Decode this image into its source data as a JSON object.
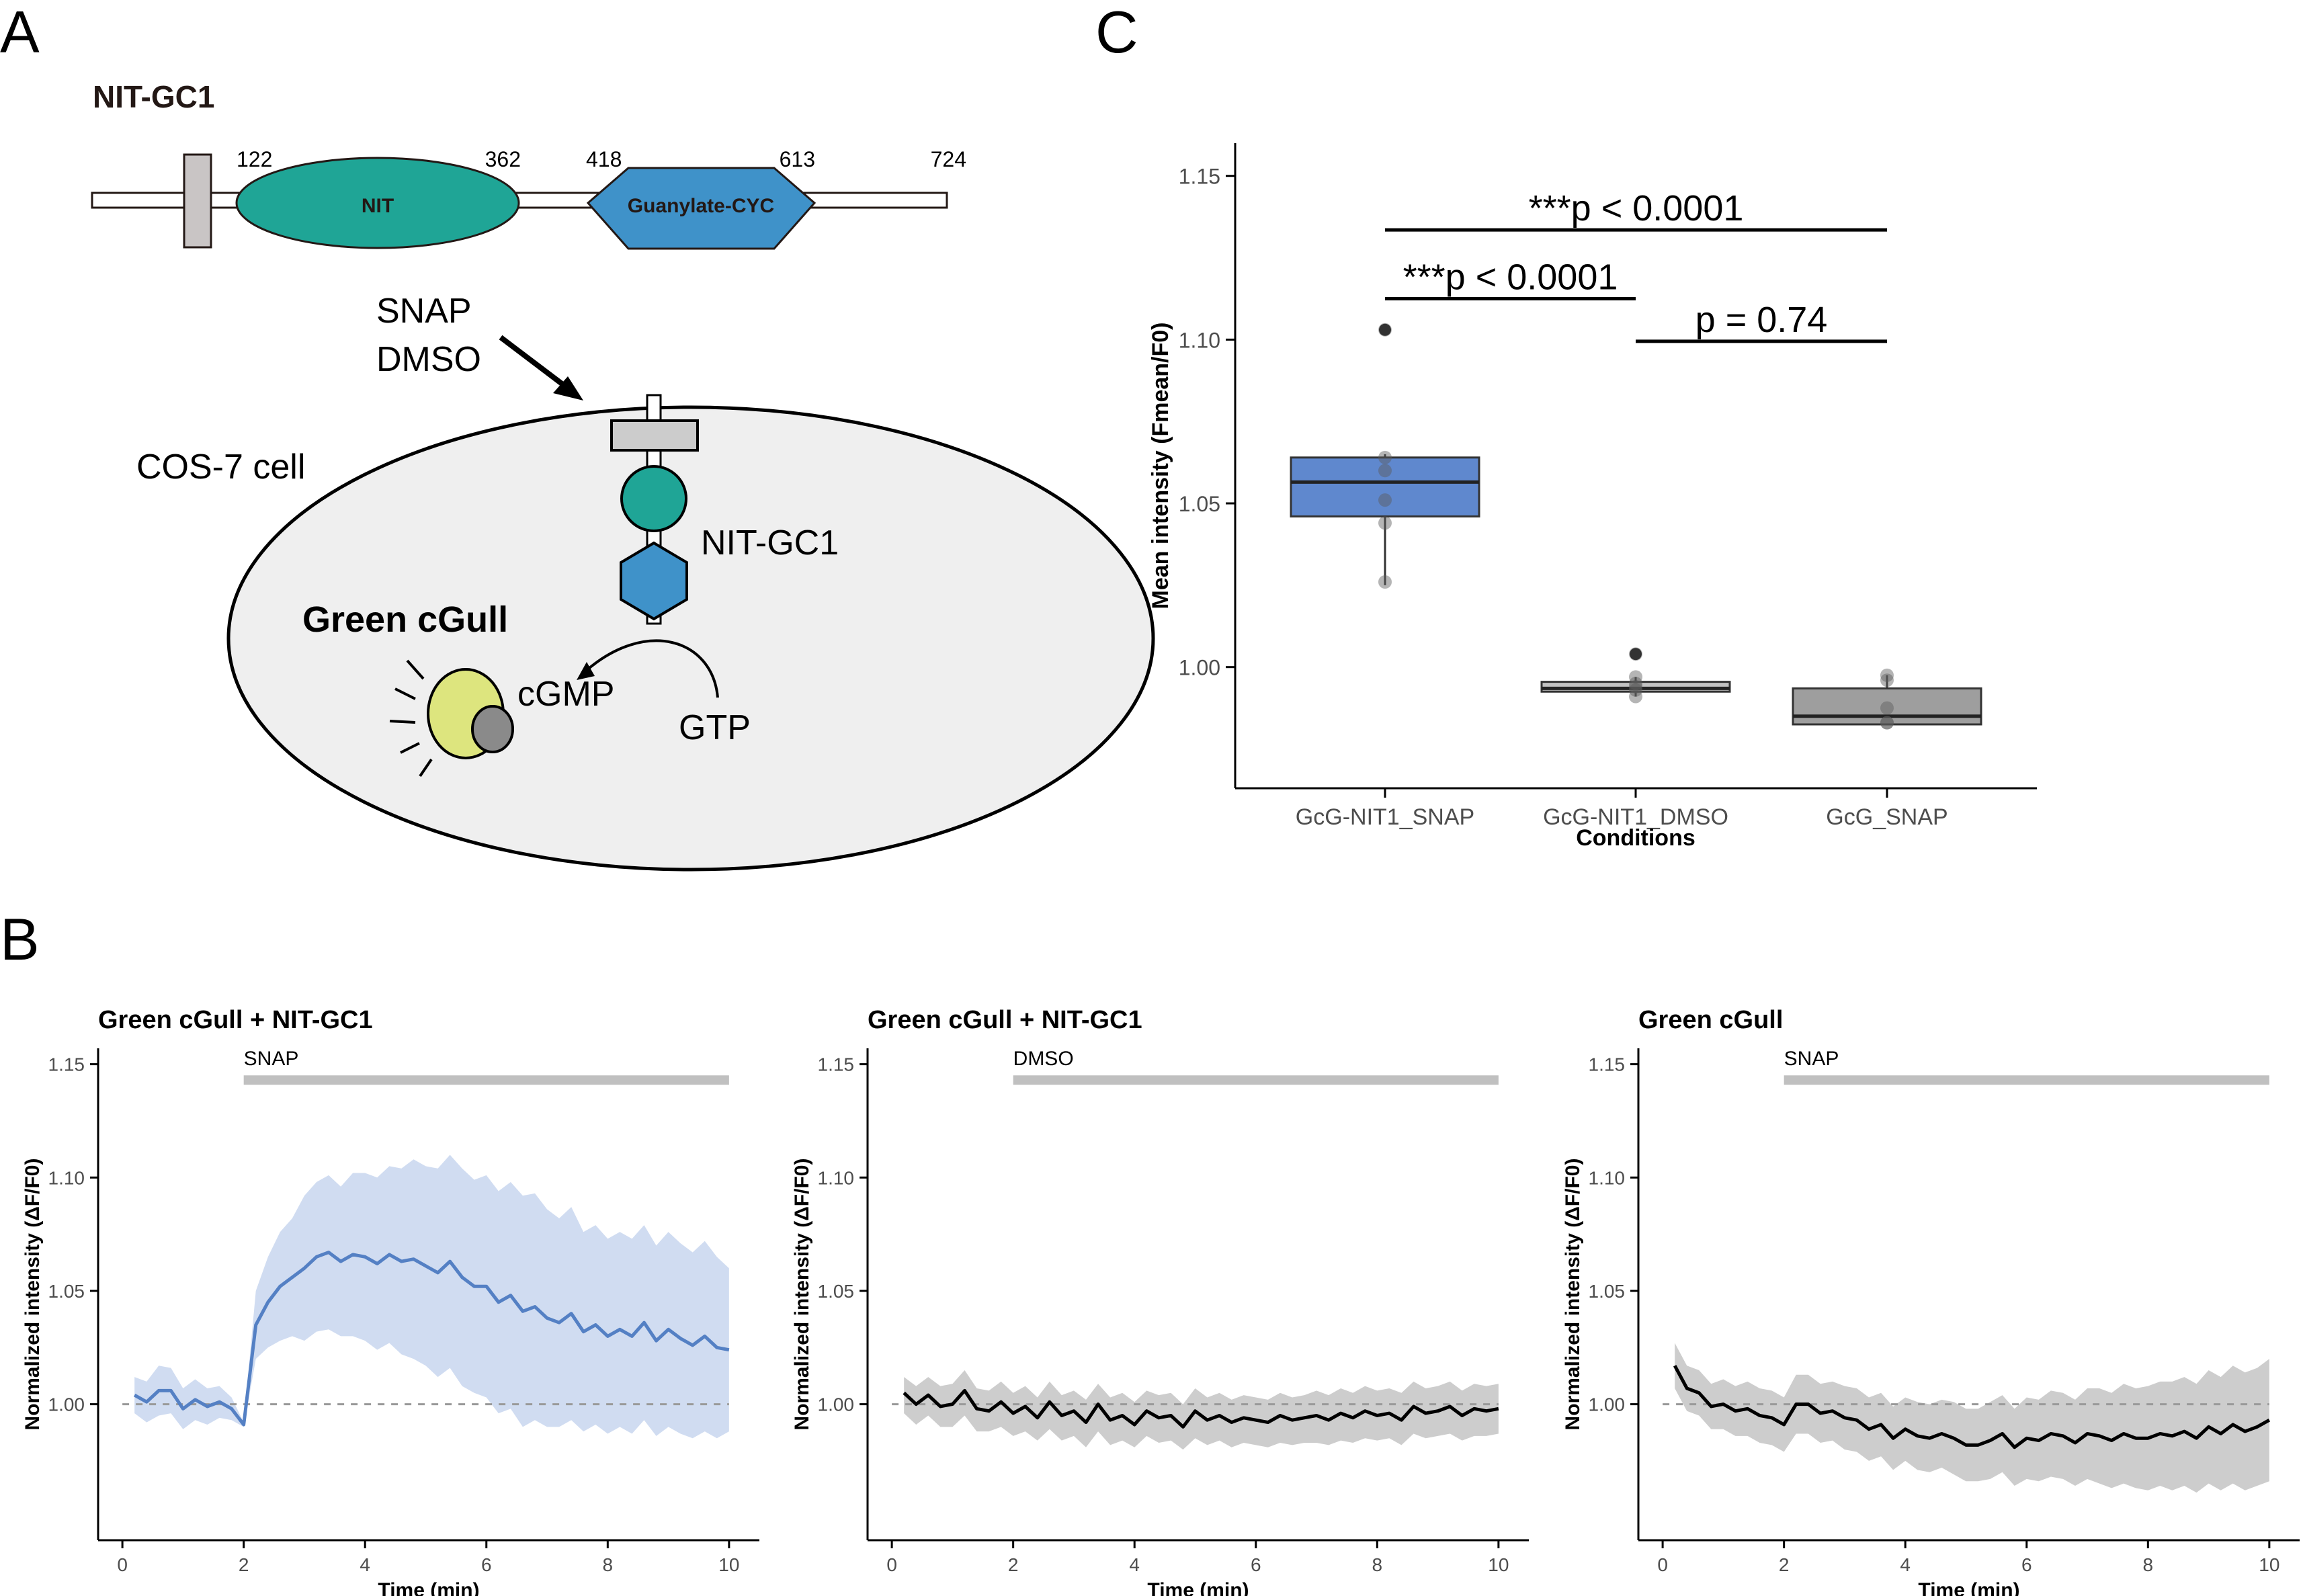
{
  "panel_labels": {
    "a": "A",
    "b": "B",
    "c": "C"
  },
  "panel_a": {
    "construct_title": "NIT-GC1",
    "domain_numbers": [
      "122",
      "362",
      "418",
      "613",
      "724"
    ],
    "nit_label": "NIT",
    "cyc_label": "Guanylate-CYC",
    "treatment_line1": "SNAP",
    "treatment_line2": "DMSO",
    "cell_label": "COS-7 cell",
    "receptor_label": "NIT-GC1",
    "sensor_label": "Green cGull",
    "product_label": "cGMP",
    "substrate_label": "GTP",
    "colors": {
      "nit": "#1fa596",
      "cyc": "#3f92c9",
      "sensor": "#dde57e",
      "membrane": "#cccccc",
      "cell": "#efefef"
    }
  },
  "chart_data": [
    {
      "type": "box",
      "panel": "C",
      "title": "",
      "xlabel": "Conditions",
      "ylabel": "Mean intensity (Fmean/F0)",
      "categories": [
        "GcG-NIT1_SNAP",
        "GcG-NIT1_DMSO",
        "GcG_SNAP"
      ],
      "yticks": [
        "1.00",
        "1.05",
        "1.10",
        "1.15"
      ],
      "ylim": [
        0.963,
        1.16
      ],
      "boxes": [
        {
          "q1": 1.046,
          "median": 1.0565,
          "q3": 1.064,
          "whisker_low": 1.025,
          "whisker_high": 1.065,
          "outliers": [
            1.103
          ],
          "points": [
            1.026,
            1.044,
            1.051,
            1.06,
            1.064,
            1.103
          ],
          "fill": "#5f88ce"
        },
        {
          "q1": 0.9925,
          "median": 0.9935,
          "q3": 0.9955,
          "whisker_low": 0.991,
          "whisker_high": 0.997,
          "outliers": [
            1.004
          ],
          "points": [
            0.991,
            0.993,
            0.994,
            0.995,
            0.997,
            1.004
          ],
          "fill": "#c2c2c2"
        },
        {
          "q1": 0.9825,
          "median": 0.985,
          "q3": 0.9935,
          "whisker_low": 0.9825,
          "whisker_high": 0.9975,
          "outliers": [],
          "points": [
            0.983,
            0.983,
            0.9875,
            0.996,
            0.9975
          ],
          "fill": "#9e9e9e"
        }
      ],
      "significance": [
        {
          "from": 0,
          "to": 2,
          "y": 1.1335,
          "label": "***p < 0.0001"
        },
        {
          "from": 0,
          "to": 1,
          "y": 1.1125,
          "label": "***p < 0.0001"
        },
        {
          "from": 1,
          "to": 2,
          "y": 1.0995,
          "label": "p = 0.74"
        }
      ]
    },
    {
      "type": "line",
      "panel": "B1",
      "title": "Green cGull + NIT-GC1",
      "xlabel": "Time (min)",
      "ylabel": "Normalized intensity (ΔF/F0)",
      "xticks": [
        "0",
        "2",
        "4",
        "6",
        "8",
        "10"
      ],
      "yticks": [
        "1.00",
        "1.05",
        "1.10",
        "1.15"
      ],
      "xlim": [
        -0.4,
        10.5
      ],
      "ylim": [
        0.94,
        1.157
      ],
      "treatment": {
        "label": "SNAP",
        "start": 2,
        "end": 10
      },
      "mean_color": "#5480c4",
      "band_color": "#c8d6ee",
      "mean": {
        "x": [
          0.2,
          0.4,
          0.6,
          0.8,
          1.0,
          1.2,
          1.4,
          1.6,
          1.8,
          2.0,
          2.2,
          2.4,
          2.6,
          2.8,
          3.0,
          3.2,
          3.4,
          3.6,
          3.8,
          4.0,
          4.2,
          4.4,
          4.6,
          4.8,
          5.0,
          5.2,
          5.4,
          5.6,
          5.8,
          6.0,
          6.2,
          6.4,
          6.6,
          6.8,
          7.0,
          7.2,
          7.4,
          7.6,
          7.8,
          8.0,
          8.2,
          8.4,
          8.6,
          8.8,
          9.0,
          9.2,
          9.4,
          9.6,
          9.8,
          10.0
        ],
        "y": [
          1.004,
          1.001,
          1.006,
          1.006,
          0.998,
          1.002,
          0.999,
          1.001,
          0.998,
          0.991,
          1.035,
          1.045,
          1.052,
          1.056,
          1.06,
          1.065,
          1.067,
          1.063,
          1.066,
          1.065,
          1.062,
          1.066,
          1.063,
          1.064,
          1.061,
          1.058,
          1.063,
          1.056,
          1.052,
          1.052,
          1.045,
          1.048,
          1.041,
          1.043,
          1.038,
          1.036,
          1.04,
          1.032,
          1.035,
          1.03,
          1.033,
          1.03,
          1.036,
          1.028,
          1.033,
          1.029,
          1.026,
          1.03,
          1.025,
          1.024
        ]
      },
      "band": {
        "lower": [
          0.996,
          0.992,
          0.995,
          0.996,
          0.989,
          0.993,
          0.991,
          0.994,
          0.993,
          0.99,
          1.02,
          1.025,
          1.028,
          1.03,
          1.028,
          1.032,
          1.033,
          1.03,
          1.03,
          1.028,
          1.024,
          1.027,
          1.022,
          1.02,
          1.017,
          1.012,
          1.016,
          1.008,
          1.005,
          1.003,
          0.996,
          0.998,
          0.99,
          0.993,
          0.99,
          0.99,
          0.993,
          0.988,
          0.991,
          0.987,
          0.99,
          0.987,
          0.993,
          0.986,
          0.99,
          0.987,
          0.985,
          0.988,
          0.985,
          0.988
        ],
        "upper": [
          1.012,
          1.01,
          1.017,
          1.016,
          1.007,
          1.011,
          1.007,
          1.008,
          1.003,
          0.992,
          1.05,
          1.065,
          1.076,
          1.082,
          1.092,
          1.098,
          1.101,
          1.096,
          1.102,
          1.102,
          1.1,
          1.105,
          1.104,
          1.108,
          1.105,
          1.104,
          1.11,
          1.104,
          1.099,
          1.101,
          1.094,
          1.098,
          1.092,
          1.093,
          1.086,
          1.082,
          1.087,
          1.076,
          1.079,
          1.073,
          1.076,
          1.073,
          1.079,
          1.07,
          1.076,
          1.071,
          1.067,
          1.072,
          1.065,
          1.06
        ]
      }
    },
    {
      "type": "line",
      "panel": "B2",
      "title": "Green cGull + NIT-GC1",
      "xlabel": "Time (min)",
      "ylabel": "Normalized intensity (ΔF/F0)",
      "xticks": [
        "0",
        "2",
        "4",
        "6",
        "8",
        "10"
      ],
      "yticks": [
        "1.00",
        "1.05",
        "1.10",
        "1.15"
      ],
      "xlim": [
        -0.4,
        10.5
      ],
      "ylim": [
        0.94,
        1.157
      ],
      "treatment": {
        "label": "DMSO",
        "start": 2,
        "end": 10
      },
      "mean_color": "#000000",
      "band_color": "#c4c4c4",
      "mean": {
        "x": [
          0.2,
          0.4,
          0.6,
          0.8,
          1.0,
          1.2,
          1.4,
          1.6,
          1.8,
          2.0,
          2.2,
          2.4,
          2.6,
          2.8,
          3.0,
          3.2,
          3.4,
          3.6,
          3.8,
          4.0,
          4.2,
          4.4,
          4.6,
          4.8,
          5.0,
          5.2,
          5.4,
          5.6,
          5.8,
          6.0,
          6.2,
          6.4,
          6.6,
          6.8,
          7.0,
          7.2,
          7.4,
          7.6,
          7.8,
          8.0,
          8.2,
          8.4,
          8.6,
          8.8,
          9.0,
          9.2,
          9.4,
          9.6,
          9.8,
          10.0
        ],
        "y": [
          1.005,
          1.0,
          1.004,
          0.999,
          1.0,
          1.006,
          0.998,
          0.997,
          1.001,
          0.996,
          0.999,
          0.994,
          1.001,
          0.995,
          0.997,
          0.992,
          1.0,
          0.993,
          0.995,
          0.991,
          0.997,
          0.994,
          0.995,
          0.99,
          0.997,
          0.993,
          0.995,
          0.992,
          0.994,
          0.993,
          0.992,
          0.995,
          0.993,
          0.994,
          0.995,
          0.993,
          0.996,
          0.994,
          0.997,
          0.995,
          0.996,
          0.993,
          0.999,
          0.996,
          0.997,
          0.999,
          0.995,
          0.998,
          0.997,
          0.998
        ]
      },
      "band": {
        "lower": [
          0.996,
          0.991,
          0.995,
          0.99,
          0.99,
          0.995,
          0.988,
          0.988,
          0.99,
          0.986,
          0.988,
          0.984,
          0.989,
          0.984,
          0.986,
          0.981,
          0.988,
          0.982,
          0.984,
          0.981,
          0.986,
          0.983,
          0.984,
          0.98,
          0.985,
          0.982,
          0.984,
          0.981,
          0.983,
          0.982,
          0.981,
          0.983,
          0.982,
          0.983,
          0.983,
          0.982,
          0.984,
          0.983,
          0.985,
          0.984,
          0.985,
          0.982,
          0.987,
          0.985,
          0.986,
          0.987,
          0.984,
          0.986,
          0.986,
          0.987
        ],
        "upper": [
          1.012,
          1.008,
          1.012,
          1.008,
          1.009,
          1.015,
          1.007,
          1.006,
          1.01,
          1.005,
          1.008,
          1.003,
          1.01,
          1.004,
          1.006,
          1.002,
          1.009,
          1.003,
          1.005,
          1.001,
          1.006,
          1.004,
          1.005,
          1.0,
          1.007,
          1.003,
          1.005,
          1.002,
          1.004,
          1.003,
          1.002,
          1.005,
          1.003,
          1.004,
          1.006,
          1.004,
          1.007,
          1.005,
          1.008,
          1.006,
          1.007,
          1.005,
          1.01,
          1.007,
          1.008,
          1.01,
          1.006,
          1.009,
          1.008,
          1.009
        ]
      }
    },
    {
      "type": "line",
      "panel": "B3",
      "title": "Green cGull",
      "xlabel": "Time (min)",
      "ylabel": "Normalized intensity (ΔF/F0)",
      "xticks": [
        "0",
        "2",
        "4",
        "6",
        "8",
        "10"
      ],
      "yticks": [
        "1.00",
        "1.05",
        "1.10",
        "1.15"
      ],
      "xlim": [
        -0.4,
        10.5
      ],
      "ylim": [
        0.94,
        1.157
      ],
      "treatment": {
        "label": "SNAP",
        "start": 2,
        "end": 10
      },
      "mean_color": "#000000",
      "band_color": "#c4c4c4",
      "mean": {
        "x": [
          0.2,
          0.4,
          0.6,
          0.8,
          1.0,
          1.2,
          1.4,
          1.6,
          1.8,
          2.0,
          2.2,
          2.4,
          2.6,
          2.8,
          3.0,
          3.2,
          3.4,
          3.6,
          3.8,
          4.0,
          4.2,
          4.4,
          4.6,
          4.8,
          5.0,
          5.2,
          5.4,
          5.6,
          5.8,
          6.0,
          6.2,
          6.4,
          6.6,
          6.8,
          7.0,
          7.2,
          7.4,
          7.6,
          7.8,
          8.0,
          8.2,
          8.4,
          8.6,
          8.8,
          9.0,
          9.2,
          9.4,
          9.6,
          9.8,
          10.0
        ],
        "y": [
          1.017,
          1.007,
          1.005,
          0.999,
          1.0,
          0.997,
          0.998,
          0.995,
          0.994,
          0.991,
          1.0,
          1.0,
          0.996,
          0.997,
          0.994,
          0.993,
          0.989,
          0.991,
          0.985,
          0.989,
          0.986,
          0.985,
          0.987,
          0.985,
          0.982,
          0.982,
          0.984,
          0.987,
          0.981,
          0.985,
          0.984,
          0.987,
          0.986,
          0.983,
          0.987,
          0.986,
          0.984,
          0.987,
          0.985,
          0.985,
          0.987,
          0.986,
          0.988,
          0.985,
          0.99,
          0.987,
          0.991,
          0.988,
          0.99,
          0.993
        ]
      },
      "band": {
        "lower": [
          1.007,
          0.997,
          0.995,
          0.989,
          0.989,
          0.986,
          0.986,
          0.983,
          0.982,
          0.979,
          0.987,
          0.987,
          0.983,
          0.984,
          0.98,
          0.979,
          0.975,
          0.977,
          0.971,
          0.975,
          0.971,
          0.97,
          0.972,
          0.969,
          0.966,
          0.966,
          0.967,
          0.97,
          0.964,
          0.967,
          0.966,
          0.968,
          0.967,
          0.964,
          0.967,
          0.965,
          0.963,
          0.965,
          0.963,
          0.962,
          0.964,
          0.962,
          0.964,
          0.961,
          0.965,
          0.962,
          0.965,
          0.962,
          0.964,
          0.966
        ],
        "upper": [
          1.027,
          1.017,
          1.015,
          1.009,
          1.011,
          1.008,
          1.01,
          1.007,
          1.006,
          1.003,
          1.013,
          1.013,
          1.009,
          1.01,
          1.008,
          1.007,
          1.003,
          1.005,
          0.999,
          1.003,
          1.001,
          1.0,
          1.002,
          1.001,
          0.998,
          0.998,
          1.001,
          1.004,
          0.998,
          1.003,
          1.002,
          1.006,
          1.005,
          1.002,
          1.007,
          1.007,
          1.005,
          1.009,
          1.007,
          1.008,
          1.01,
          1.01,
          1.012,
          1.009,
          1.015,
          1.012,
          1.017,
          1.014,
          1.016,
          1.02
        ]
      }
    }
  ]
}
